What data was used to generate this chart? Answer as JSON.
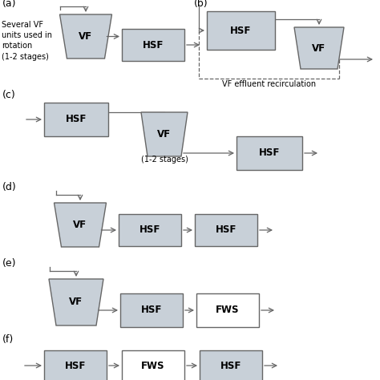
{
  "bg_color": "#ffffff",
  "box_fill": "#c8d0d8",
  "fws_fill": "#ffffff",
  "box_edge": "#666666",
  "text_color": "#000000",
  "font_size": 8.5,
  "label_font_size": 9,
  "note_a": "Several VF\nunits used in\nrotation\n(1-2 stages)",
  "note_c": "(1-2 stages)",
  "note_b": "VF effluent recirculation",
  "sections": [
    "(a)",
    "(b)",
    "(c)",
    "(d)",
    "(e)",
    "(f)"
  ]
}
